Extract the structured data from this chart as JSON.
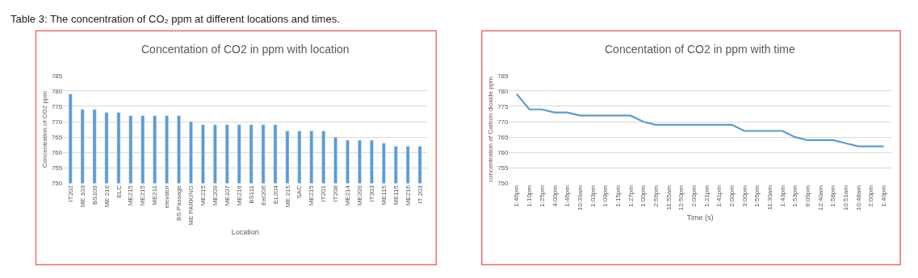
{
  "chart_data": [
    {
      "type": "bar",
      "title": "Concentation of CO2 in ppm with location",
      "xlabel": "Location",
      "ylabel": "Concentration of CO2 ppm",
      "annotations": [
        "Table 3: The concentration of CO₂ ppm at different locations and times."
      ],
      "categories": [
        "IT202",
        "ME 103",
        "BS109",
        "ME 216",
        "ELC",
        "ME215",
        "ME215",
        "ME211",
        "elevator",
        "BS Passage",
        "ME PARKING",
        "ME215",
        "ME209",
        "ME107",
        "ME216",
        "BS111",
        "Eel206",
        "EL204",
        "ME 215",
        "SAC",
        "ME215",
        "IT201",
        "IT208",
        "ME214",
        "ME209",
        "IT303",
        "ME115",
        "ME115",
        "ME216",
        "IT 203"
      ],
      "values": [
        779,
        774,
        774,
        773,
        773,
        772,
        772,
        772,
        772,
        772,
        770,
        769,
        769,
        769,
        769,
        769,
        769,
        769,
        767,
        767,
        767,
        767,
        765,
        764,
        764,
        764,
        763,
        762,
        762,
        762
      ],
      "color": "#5b9bd5",
      "ylim": [
        750,
        785
      ],
      "yticks": [
        750,
        755,
        760,
        765,
        770,
        775,
        780,
        785
      ],
      "grid": "y",
      "legend": false
    },
    {
      "type": "line",
      "title": "Concentation of CO2 in ppm with time",
      "xlabel": "Time (s)",
      "ylabel": "concentration of Carbon dioxide ppm",
      "categories": [
        "1:46pm",
        "1:10pm",
        "1:25pm",
        "4:00pm",
        "1:46pm",
        "10:39am",
        "1:03pm",
        "1:09pm",
        "1:15pm",
        "1:27pm",
        "1:00pm",
        "2:56pm",
        "11:55am",
        "12:50pm",
        "2:00pm",
        "1:21pm",
        "1:41pm",
        "2:00pm",
        "3:00pm",
        "1:55pm",
        "11:30am",
        "1:43pm",
        "1:53pm",
        "9:09pm",
        "12:40am",
        "1:58pm",
        "10:51am",
        "10:48am",
        "2:00pm",
        "1:40pm"
      ],
      "values": [
        779,
        774,
        774,
        773,
        773,
        772,
        772,
        772,
        772,
        772,
        770,
        769,
        769,
        769,
        769,
        769,
        769,
        769,
        767,
        767,
        767,
        767,
        765,
        764,
        764,
        764,
        763,
        762,
        762,
        762
      ],
      "color": "#5b9bd5",
      "ylim": [
        750,
        785
      ],
      "yticks": [
        750,
        755,
        760,
        765,
        770,
        775,
        780,
        785
      ],
      "grid": "y",
      "legend": false,
      "marker": "none",
      "line_style": "solid"
    }
  ]
}
